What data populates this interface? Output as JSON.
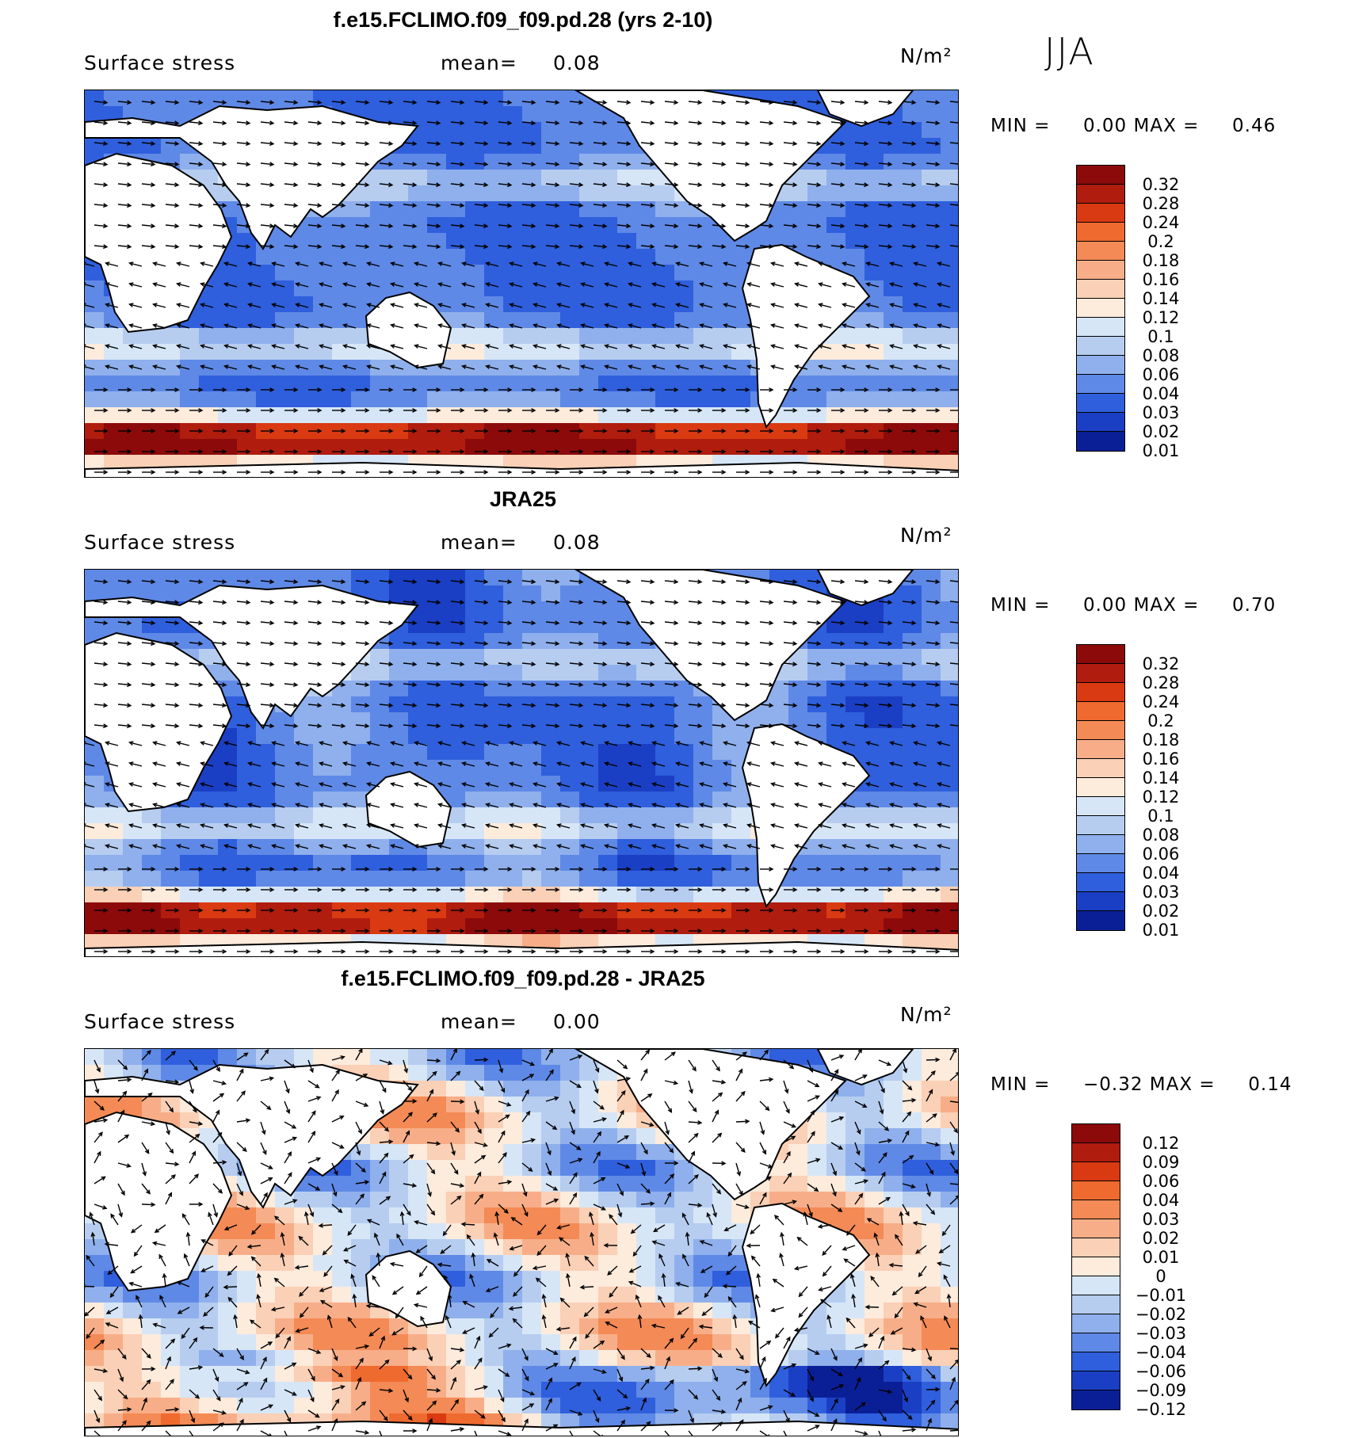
{
  "season": "JJA",
  "panels": [
    {
      "title": "f.e15.FCLIMO.f09_f09.pd.28 (yrs 2-10)",
      "variable": "Surface stress",
      "mean_label": "mean=",
      "mean_value": "0.08",
      "units": "N/m²",
      "min_label": "MIN =",
      "min_value": "0.00",
      "max_label": "MAX =",
      "max_value": "0.46",
      "colorbar_levels": [
        "0.32",
        "0.28",
        "0.24",
        "0.2",
        "0.18",
        "0.16",
        "0.14",
        "0.12",
        "0.1",
        "0.08",
        "0.06",
        "0.04",
        "0.03",
        "0.02",
        "0.01"
      ],
      "colorbar_colors": [
        "#8c0a0a",
        "#b01c0e",
        "#d93a12",
        "#ef6a2e",
        "#f48a55",
        "#f7ae88",
        "#fad0b6",
        "#fdebdc",
        "#d6e6f7",
        "#b6cdf0",
        "#8fb0ec",
        "#5f89e6",
        "#2f5fdc",
        "#1b3fc4",
        "#0a1f96"
      ]
    },
    {
      "title": "JRA25",
      "variable": "Surface stress",
      "mean_label": "mean=",
      "mean_value": "0.08",
      "units": "N/m²",
      "min_label": "MIN =",
      "min_value": "0.00",
      "max_label": "MAX =",
      "max_value": "0.70",
      "colorbar_levels": [
        "0.32",
        "0.28",
        "0.24",
        "0.2",
        "0.18",
        "0.16",
        "0.14",
        "0.12",
        "0.1",
        "0.08",
        "0.06",
        "0.04",
        "0.03",
        "0.02",
        "0.01"
      ],
      "colorbar_colors": [
        "#8c0a0a",
        "#b01c0e",
        "#d93a12",
        "#ef6a2e",
        "#f48a55",
        "#f7ae88",
        "#fad0b6",
        "#fdebdc",
        "#d6e6f7",
        "#b6cdf0",
        "#8fb0ec",
        "#5f89e6",
        "#2f5fdc",
        "#1b3fc4",
        "#0a1f96"
      ]
    },
    {
      "title": "f.e15.FCLIMO.f09_f09.pd.28 - JRA25",
      "variable": "Surface stress",
      "mean_label": "mean=",
      "mean_value": "0.00",
      "units": "N/m²",
      "min_label": "MIN =",
      "min_value": "−0.32",
      "max_label": "MAX =",
      "max_value": "0.14",
      "colorbar_levels": [
        "0.12",
        "0.09",
        "0.06",
        "0.04",
        "0.03",
        "0.02",
        "0.01",
        "0",
        "−0.01",
        "−0.02",
        "−0.03",
        "−0.04",
        "−0.06",
        "−0.09",
        "−0.12"
      ],
      "colorbar_colors": [
        "#8c0a0a",
        "#b01c0e",
        "#d93a12",
        "#ef6a2e",
        "#f48a55",
        "#f7ae88",
        "#fad0b6",
        "#fdebdc",
        "#d6e6f7",
        "#b6cdf0",
        "#8fb0ec",
        "#5f89e6",
        "#2f5fdc",
        "#1b3fc4",
        "#0a1f96"
      ]
    }
  ]
}
